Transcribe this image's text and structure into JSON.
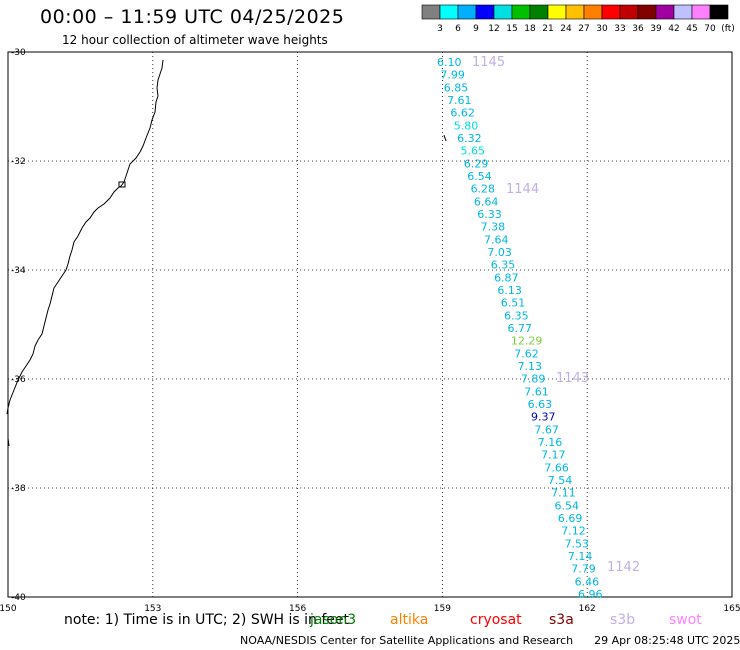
{
  "header": {
    "title": "00:00 – 11:59 UTC 04/25/2025",
    "subtitle": "12 hour collection of altimeter wave heights"
  },
  "scale": {
    "colors": [
      "#808080",
      "#00ffff",
      "#00b0ff",
      "#0000ff",
      "#00e0e0",
      "#00c000",
      "#008000",
      "#ffff00",
      "#ffc000",
      "#ff8000",
      "#ff0000",
      "#c00000",
      "#800000",
      "#a000a0",
      "#c0c0ff",
      "#ff80ff",
      "#000000"
    ],
    "labels": [
      "3",
      "6",
      "9",
      "12",
      "15",
      "18",
      "21",
      "24",
      "27",
      "30",
      "33",
      "36",
      "39",
      "42",
      "45",
      "70",
      "(ft)"
    ]
  },
  "axes": {
    "lon_labels": [
      "150",
      "153",
      "156",
      "159",
      "162",
      "165"
    ],
    "lat_labels": [
      "-30",
      "-32",
      "-34",
      "-36",
      "-38",
      "-40"
    ]
  },
  "tracks": [
    "1145",
    "1144",
    "1143",
    "1142"
  ],
  "track_color": "#c0b0e8",
  "chart_data": {
    "type": "map",
    "lon_range": [
      150,
      165
    ],
    "lat_range": [
      -40,
      -30
    ],
    "grid": true,
    "points": [
      {
        "v": "6.10",
        "c": "#00b8e0"
      },
      {
        "v": "7.99",
        "c": "#00b8e0"
      },
      {
        "v": "6.85",
        "c": "#00b8e0"
      },
      {
        "v": "7.61",
        "c": "#00b8e0"
      },
      {
        "v": "6.62",
        "c": "#00b8e0"
      },
      {
        "v": "5.80",
        "c": "#00e0e0"
      },
      {
        "v": "6.32",
        "c": "#00b8e0"
      },
      {
        "v": "5.65",
        "c": "#00e0e0"
      },
      {
        "v": "6.29",
        "c": "#00b8e0"
      },
      {
        "v": "6.54",
        "c": "#00b8e0"
      },
      {
        "v": "6.28",
        "c": "#00b8e0"
      },
      {
        "v": "6.64",
        "c": "#00b8e0"
      },
      {
        "v": "6.33",
        "c": "#00b8e0"
      },
      {
        "v": "7.38",
        "c": "#00b8e0"
      },
      {
        "v": "7.64",
        "c": "#00b8e0"
      },
      {
        "v": "7.03",
        "c": "#00b8e0"
      },
      {
        "v": "6.35",
        "c": "#00b8e0"
      },
      {
        "v": "6.87",
        "c": "#00b8e0"
      },
      {
        "v": "6.13",
        "c": "#00b8e0"
      },
      {
        "v": "6.51",
        "c": "#00b8e0"
      },
      {
        "v": "6.35",
        "c": "#00b8e0"
      },
      {
        "v": "6.77",
        "c": "#00b8e0"
      },
      {
        "v": "12.29",
        "c": "#80d040"
      },
      {
        "v": "7.62",
        "c": "#00b8e0"
      },
      {
        "v": "7.13",
        "c": "#00b8e0"
      },
      {
        "v": "7.89",
        "c": "#00b8e0"
      },
      {
        "v": "7.61",
        "c": "#00b8e0"
      },
      {
        "v": "6.63",
        "c": "#00b8e0"
      },
      {
        "v": "9.37",
        "c": "#0000c0"
      },
      {
        "v": "7.67",
        "c": "#00b8e0"
      },
      {
        "v": "7.16",
        "c": "#00b8e0"
      },
      {
        "v": "7.17",
        "c": "#00b8e0"
      },
      {
        "v": "7.66",
        "c": "#00b8e0"
      },
      {
        "v": "7.54",
        "c": "#00b8e0"
      },
      {
        "v": "7.11",
        "c": "#00b8e0"
      },
      {
        "v": "6.54",
        "c": "#00b8e0"
      },
      {
        "v": "6.69",
        "c": "#00b8e0"
      },
      {
        "v": "7.12",
        "c": "#00b8e0"
      },
      {
        "v": "7.53",
        "c": "#00b8e0"
      },
      {
        "v": "7.14",
        "c": "#00b8e0"
      },
      {
        "v": "7.79",
        "c": "#00b8e0"
      },
      {
        "v": "6.46",
        "c": "#00b8e0"
      },
      {
        "v": "6.96",
        "c": "#00b8e0"
      }
    ]
  },
  "note": "note: 1) Time is in UTC; 2) SWH is in feet",
  "satellites": [
    {
      "name": "jason3",
      "color": "#008000"
    },
    {
      "name": "altika",
      "color": "#ff8000"
    },
    {
      "name": "cryosat",
      "color": "#ff0000"
    },
    {
      "name": "s3a",
      "color": "#800000"
    },
    {
      "name": "s3b",
      "color": "#c0b0e8"
    },
    {
      "name": "swot",
      "color": "#ff80ff"
    }
  ],
  "footer": {
    "credit": "NOAA/NESDIS Center for Satellite Applications and Research",
    "timestamp": "29 Apr 08:25:48 UTC 2025"
  }
}
